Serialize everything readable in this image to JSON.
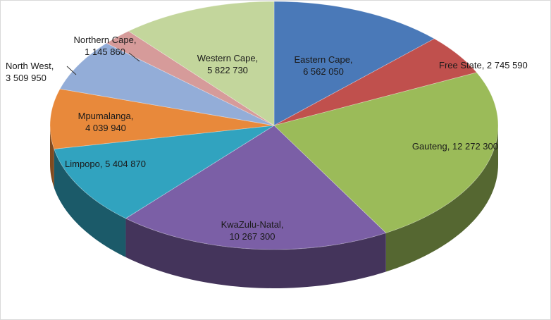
{
  "chart_data": {
    "type": "pie",
    "title": "",
    "three_d": true,
    "legend": "none",
    "slices": [
      {
        "name": "Eastern Cape",
        "value": 6562050,
        "color": "#4a79b8",
        "label_lines": [
          "Eastern Cape,",
          "6 562 050"
        ]
      },
      {
        "name": "Free State",
        "value": 2745590,
        "color": "#c0504d",
        "label_lines": [
          "Free State, 2 745 590"
        ]
      },
      {
        "name": "Gauteng",
        "value": 12272300,
        "color": "#9bbb59",
        "label_lines": [
          "Gauteng, 12 272 300"
        ]
      },
      {
        "name": "KwaZulu-Natal",
        "value": 10267300,
        "color": "#7b5fa6",
        "label_lines": [
          "KwaZulu-Natal,",
          "10 267 300"
        ]
      },
      {
        "name": "Limpopo",
        "value": 5404870,
        "color": "#31a3bf",
        "label_lines": [
          "Limpopo, 5 404 870"
        ]
      },
      {
        "name": "Mpumalanga",
        "value": 4039940,
        "color": "#e8893b",
        "label_lines": [
          "Mpumalanga,",
          "4 039 940"
        ]
      },
      {
        "name": "North West",
        "value": 3509950,
        "color": "#93add8",
        "label_lines": [
          "North West,",
          "3 509 950"
        ]
      },
      {
        "name": "Northern Cape",
        "value": 1145860,
        "color": "#d69b9a",
        "label_lines": [
          "Northern Cape,",
          "1 145 860"
        ]
      },
      {
        "name": "Western Cape",
        "value": 5822730,
        "color": "#c3d69c",
        "label_lines": [
          "Western Cape,",
          "5 822 730"
        ]
      }
    ]
  }
}
